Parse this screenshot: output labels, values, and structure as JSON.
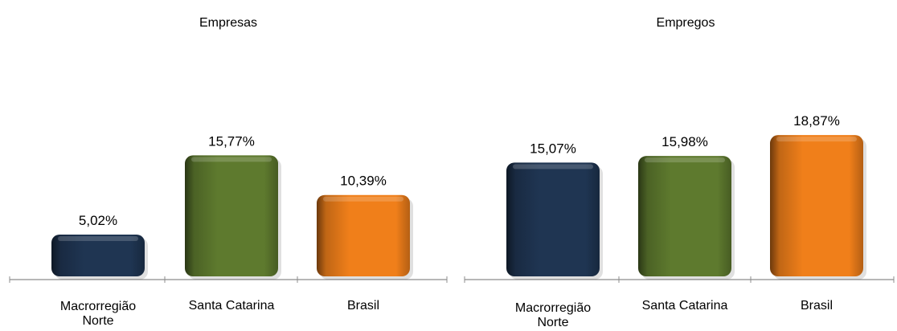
{
  "chart_data": [
    {
      "type": "bar",
      "title": "Empresas",
      "categories": [
        "Macrorregião Norte",
        "Santa Catarina",
        "Brasil"
      ],
      "category_lines": [
        [
          "Macrorregião",
          "Norte"
        ],
        [
          "Santa Catarina"
        ],
        [
          "Brasil"
        ]
      ],
      "values": [
        5.02,
        15.77,
        10.39
      ],
      "value_labels": [
        "5,02%",
        "15,77%",
        "10,39%"
      ],
      "colors": [
        "#1f3552",
        "#5e7a2e",
        "#f07f1a"
      ],
      "xlabel": "",
      "ylabel": "",
      "ylim": [
        0,
        20
      ],
      "grid": false,
      "legend": "none"
    },
    {
      "type": "bar",
      "title": "Empregos",
      "categories": [
        "Macrorregião Norte",
        "Santa Catarina",
        "Brasil"
      ],
      "category_lines": [
        [
          "Macrorregião",
          "Norte"
        ],
        [
          "Santa Catarina"
        ],
        [
          "Brasil"
        ]
      ],
      "values": [
        15.07,
        15.98,
        18.87
      ],
      "value_labels": [
        "15,07%",
        "15,98%",
        "18,87%"
      ],
      "colors": [
        "#1f3552",
        "#5e7a2e",
        "#f07f1a"
      ],
      "xlabel": "",
      "ylabel": "",
      "ylim": [
        0,
        20
      ],
      "grid": false,
      "legend": "none"
    }
  ]
}
